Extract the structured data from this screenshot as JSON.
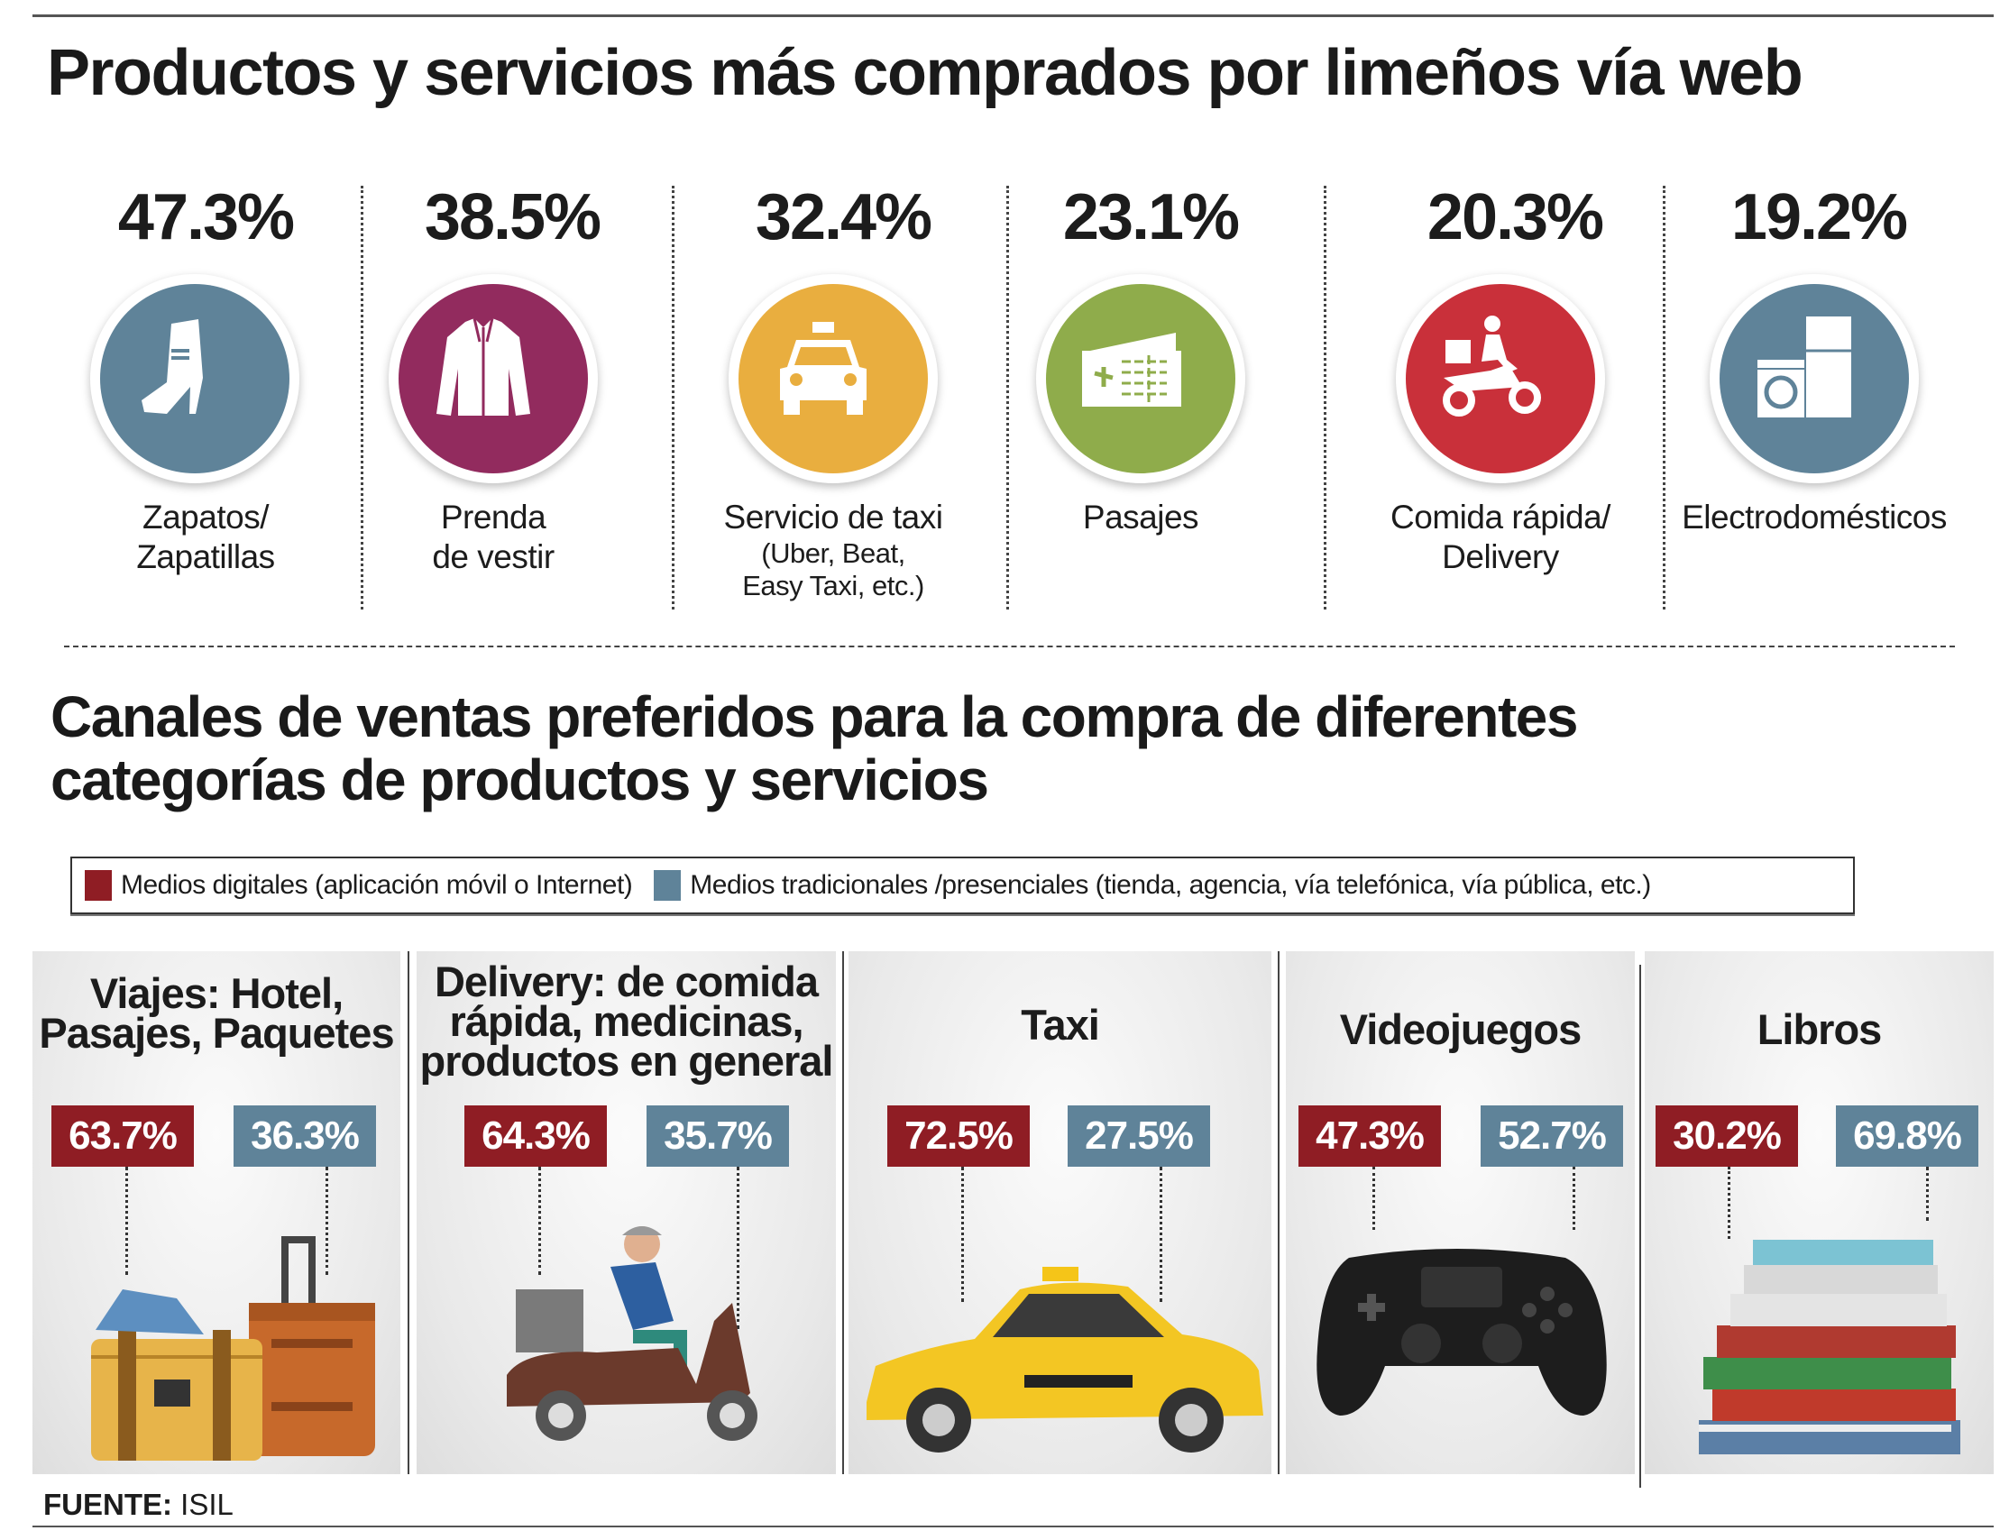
{
  "section1": {
    "title": "Productos y servicios más comprados por limeños vía web",
    "items": [
      {
        "percent": "47.3%",
        "label_line1": "Zapatos/",
        "label_line2": "Zapatillas",
        "sub1": "",
        "sub2": "",
        "icon": "shoe-icon",
        "color": "#5f8399"
      },
      {
        "percent": "38.5%",
        "label_line1": "Prenda",
        "label_line2": "de vestir",
        "sub1": "",
        "sub2": "",
        "icon": "shirt-icon",
        "color": "#922b5e"
      },
      {
        "percent": "32.4%",
        "label_line1": "Servicio de taxi",
        "label_line2": "",
        "sub1": "(Uber, Beat,",
        "sub2": "Easy Taxi, etc.)",
        "icon": "taxi-icon",
        "color": "#e9ae3f"
      },
      {
        "percent": "23.1%",
        "label_line1": "Pasajes",
        "label_line2": "",
        "sub1": "",
        "sub2": "",
        "icon": "ticket-icon",
        "color": "#8fac4b"
      },
      {
        "percent": "20.3%",
        "label_line1": "Comida rápida/",
        "label_line2": "Delivery",
        "sub1": "",
        "sub2": "",
        "icon": "delivery-scooter-icon",
        "color": "#c9303a"
      },
      {
        "percent": "19.2%",
        "label_line1": "Electrodomésticos",
        "label_line2": "",
        "sub1": "",
        "sub2": "",
        "icon": "appliances-icon",
        "color": "#5f8399"
      }
    ]
  },
  "section2": {
    "title_line1": "Canales de ventas preferidos para la compra de diferentes",
    "title_line2": "categorías de productos y servicios",
    "legend": {
      "digital": "Medios digitales (aplicación móvil o Internet)",
      "traditional": "Medios tradicionales /presenciales (tienda, agencia, vía telefónica, vía pública, etc.)",
      "digital_color": "#8f1d24",
      "traditional_color": "#5f8399"
    },
    "panels": [
      {
        "title_lines": [
          "Viajes: Hotel,",
          "Pasajes, Paquetes",
          ""
        ],
        "digital": "63.7%",
        "traditional": "36.3%",
        "icon": "luggage-icon"
      },
      {
        "title_lines": [
          "Delivery: de comida",
          "rápida, medicinas,",
          "productos en general"
        ],
        "digital": "64.3%",
        "traditional": "35.7%",
        "icon": "delivery-scooter-icon"
      },
      {
        "title_lines": [
          "Taxi",
          "",
          ""
        ],
        "digital": "72.5%",
        "traditional": "27.5%",
        "icon": "taxi-car-icon"
      },
      {
        "title_lines": [
          "Videojuegos",
          "",
          ""
        ],
        "digital": "47.3%",
        "traditional": "52.7%",
        "icon": "gamepad-icon"
      },
      {
        "title_lines": [
          "Libros",
          "",
          ""
        ],
        "digital": "30.2%",
        "traditional": "69.8%",
        "icon": "books-icon"
      }
    ]
  },
  "footer": {
    "source_label": "FUENTE:",
    "source": "ISIL"
  }
}
